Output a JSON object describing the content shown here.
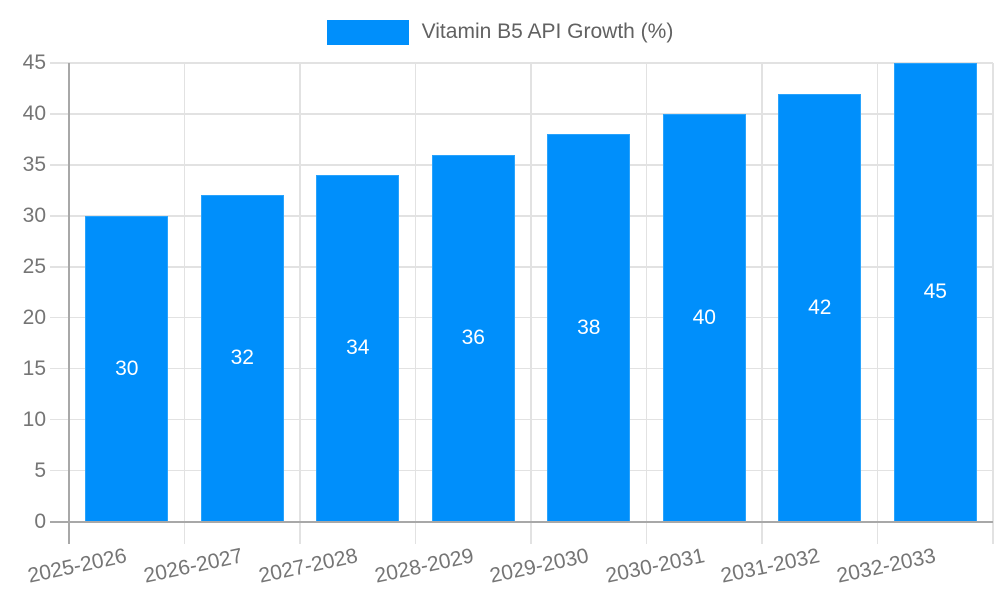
{
  "chart_data": {
    "type": "bar",
    "title": "Vitamin B5 API Growth (%)",
    "legend_position": "top",
    "legend_entries": [
      "Vitamin B5 API Growth (%)"
    ],
    "categories": [
      "2025-2026",
      "2026-2027",
      "2027-2028",
      "2028-2029",
      "2029-2030",
      "2030-2031",
      "2031-2032",
      "2032-2033"
    ],
    "series": [
      {
        "name": "Vitamin B5 API Growth (%)",
        "values": [
          30,
          32,
          34,
          36,
          38,
          40,
          42,
          45
        ]
      }
    ],
    "data_labels": [
      "30",
      "32",
      "34",
      "36",
      "38",
      "40",
      "42",
      "45"
    ],
    "xlabel": "",
    "ylabel": "",
    "ylim": [
      0,
      45
    ],
    "yticks": [
      0,
      5,
      10,
      15,
      20,
      25,
      30,
      35,
      40,
      45
    ],
    "grid": "horizontal and vertical gridlines on",
    "x_label_rotation_deg": -12,
    "colors": {
      "bar": "#008FFB",
      "bar_border": "#29A3FC",
      "data_label": "#FFFFFF",
      "axis_label": "#757575",
      "legend_text": "#616161",
      "gridline": "#E2E2E2",
      "axis_line": "#A8A8A8",
      "background": "#FFFFFF"
    }
  }
}
